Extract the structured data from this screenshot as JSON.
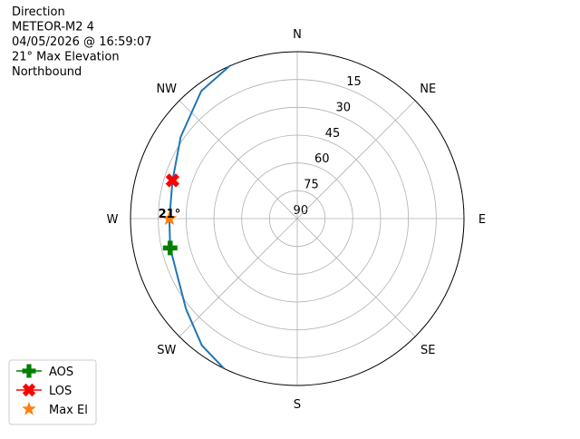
{
  "chart_data": {
    "type": "polar",
    "info_lines": [
      "Direction",
      "METEOR-M2 4",
      "04/05/2026 @ 16:59:07",
      "21° Max Elevation",
      "Northbound"
    ],
    "rlim": [
      90,
      0
    ],
    "rticks": [
      15,
      30,
      45,
      60,
      75,
      90
    ],
    "thetaticks": [
      {
        "value": 0,
        "label": "N"
      },
      {
        "value": 45,
        "label": "NE"
      },
      {
        "value": 90,
        "label": "E"
      },
      {
        "value": 135,
        "label": "SE"
      },
      {
        "value": 180,
        "label": "S"
      },
      {
        "value": 225,
        "label": "SW"
      },
      {
        "value": 270,
        "label": "W"
      },
      {
        "value": 315,
        "label": "NW"
      }
    ],
    "grid": true,
    "legend": "lower left",
    "series": [
      {
        "color": "#1f77b4",
        "marker": "line",
        "theta": [
          206,
          217,
          231,
          257,
          270,
          287,
          305,
          323,
          336
        ],
        "r": [
          0,
          4.4,
          12.7,
          19.6,
          21,
          19.6,
          13.2,
          3.9,
          0
        ]
      },
      {
        "name": "AOS",
        "color": "#008000",
        "marker": "plus",
        "theta": [
          257
        ],
        "r": [
          19.6
        ]
      },
      {
        "name": "LOS",
        "color": "#ff0000",
        "marker": "x",
        "theta": [
          287
        ],
        "r": [
          19.6
        ]
      },
      {
        "name": "Max El",
        "color": "#ff7f0e",
        "marker": "star",
        "theta": [
          270
        ],
        "r": [
          21
        ],
        "value_labels": [
          "21°"
        ]
      }
    ]
  }
}
